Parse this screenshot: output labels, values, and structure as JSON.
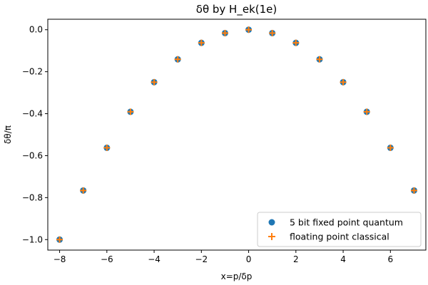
{
  "chart_data": {
    "type": "scatter",
    "title": "δθ by H_ek(1e)",
    "xlabel": "x=p/δp",
    "ylabel": "δθ/π",
    "xlim": [
      -8.5,
      7.5
    ],
    "ylim": [
      -1.05,
      0.05
    ],
    "xticks": [
      -8,
      -6,
      -4,
      -2,
      0,
      2,
      4,
      6
    ],
    "yticks": [
      0.0,
      -0.2,
      -0.4,
      -0.6,
      -0.8,
      -1.0
    ],
    "ytick_labels": [
      "0.0",
      "−0.2",
      "−0.4",
      "−0.6",
      "−0.8",
      "−1.0"
    ],
    "xtick_labels": [
      "−8",
      "−6",
      "−4",
      "−2",
      "0",
      "2",
      "4",
      "6"
    ],
    "grid": false,
    "legend_position": "bottom-right",
    "series": [
      {
        "name": "5 bit fixed point quantum",
        "marker": "circle",
        "color": "#1f77b4",
        "x": [
          -8,
          -7,
          -6,
          -5,
          -4,
          -3,
          -2,
          -1,
          0,
          1,
          2,
          3,
          4,
          5,
          6,
          7
        ],
        "y": [
          -1.0,
          -0.766,
          -0.5625,
          -0.391,
          -0.25,
          -0.141,
          -0.0625,
          -0.016,
          0.0,
          -0.016,
          -0.0625,
          -0.141,
          -0.25,
          -0.391,
          -0.5625,
          -0.766
        ]
      },
      {
        "name": "floating point classical",
        "marker": "plus",
        "color": "#ff7f0e",
        "x": [
          -8,
          -7,
          -6,
          -5,
          -4,
          -3,
          -2,
          -1,
          0,
          1,
          2,
          3,
          4,
          5,
          6,
          7
        ],
        "y": [
          -1.0,
          -0.766,
          -0.5625,
          -0.391,
          -0.25,
          -0.141,
          -0.0625,
          -0.016,
          0.0,
          -0.016,
          -0.0625,
          -0.141,
          -0.25,
          -0.391,
          -0.5625,
          -0.766
        ]
      }
    ]
  }
}
